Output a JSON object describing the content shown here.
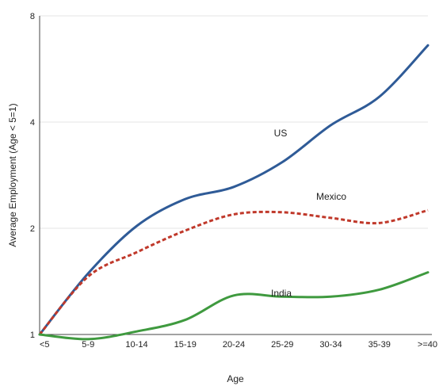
{
  "chart_data": {
    "type": "line",
    "xlabel": "Age",
    "ylabel": "Average Employment (Age < 5=1)",
    "categories": [
      "<5",
      "5-9",
      "10-14",
      "15-19",
      "20-24",
      "25-29",
      "30-34",
      "35-39",
      ">=40"
    ],
    "yscale": "log2",
    "ylim": [
      1,
      8
    ],
    "yticks": [
      1,
      2,
      4,
      8
    ],
    "grid": true,
    "legend": "none",
    "series": [
      {
        "name": "US",
        "color": "#2f5b97",
        "dash": "solid",
        "values": [
          1.0,
          1.49,
          2.03,
          2.42,
          2.62,
          3.08,
          3.92,
          4.72,
          6.6
        ]
      },
      {
        "name": "Mexico",
        "color": "#c0392b",
        "dash": "dashed",
        "values": [
          1.0,
          1.46,
          1.71,
          1.97,
          2.19,
          2.22,
          2.14,
          2.07,
          2.25
        ]
      },
      {
        "name": "India",
        "color": "#3f9a3f",
        "dash": "solid",
        "values": [
          1.0,
          0.97,
          1.02,
          1.1,
          1.29,
          1.28,
          1.28,
          1.34,
          1.5
        ]
      }
    ]
  }
}
